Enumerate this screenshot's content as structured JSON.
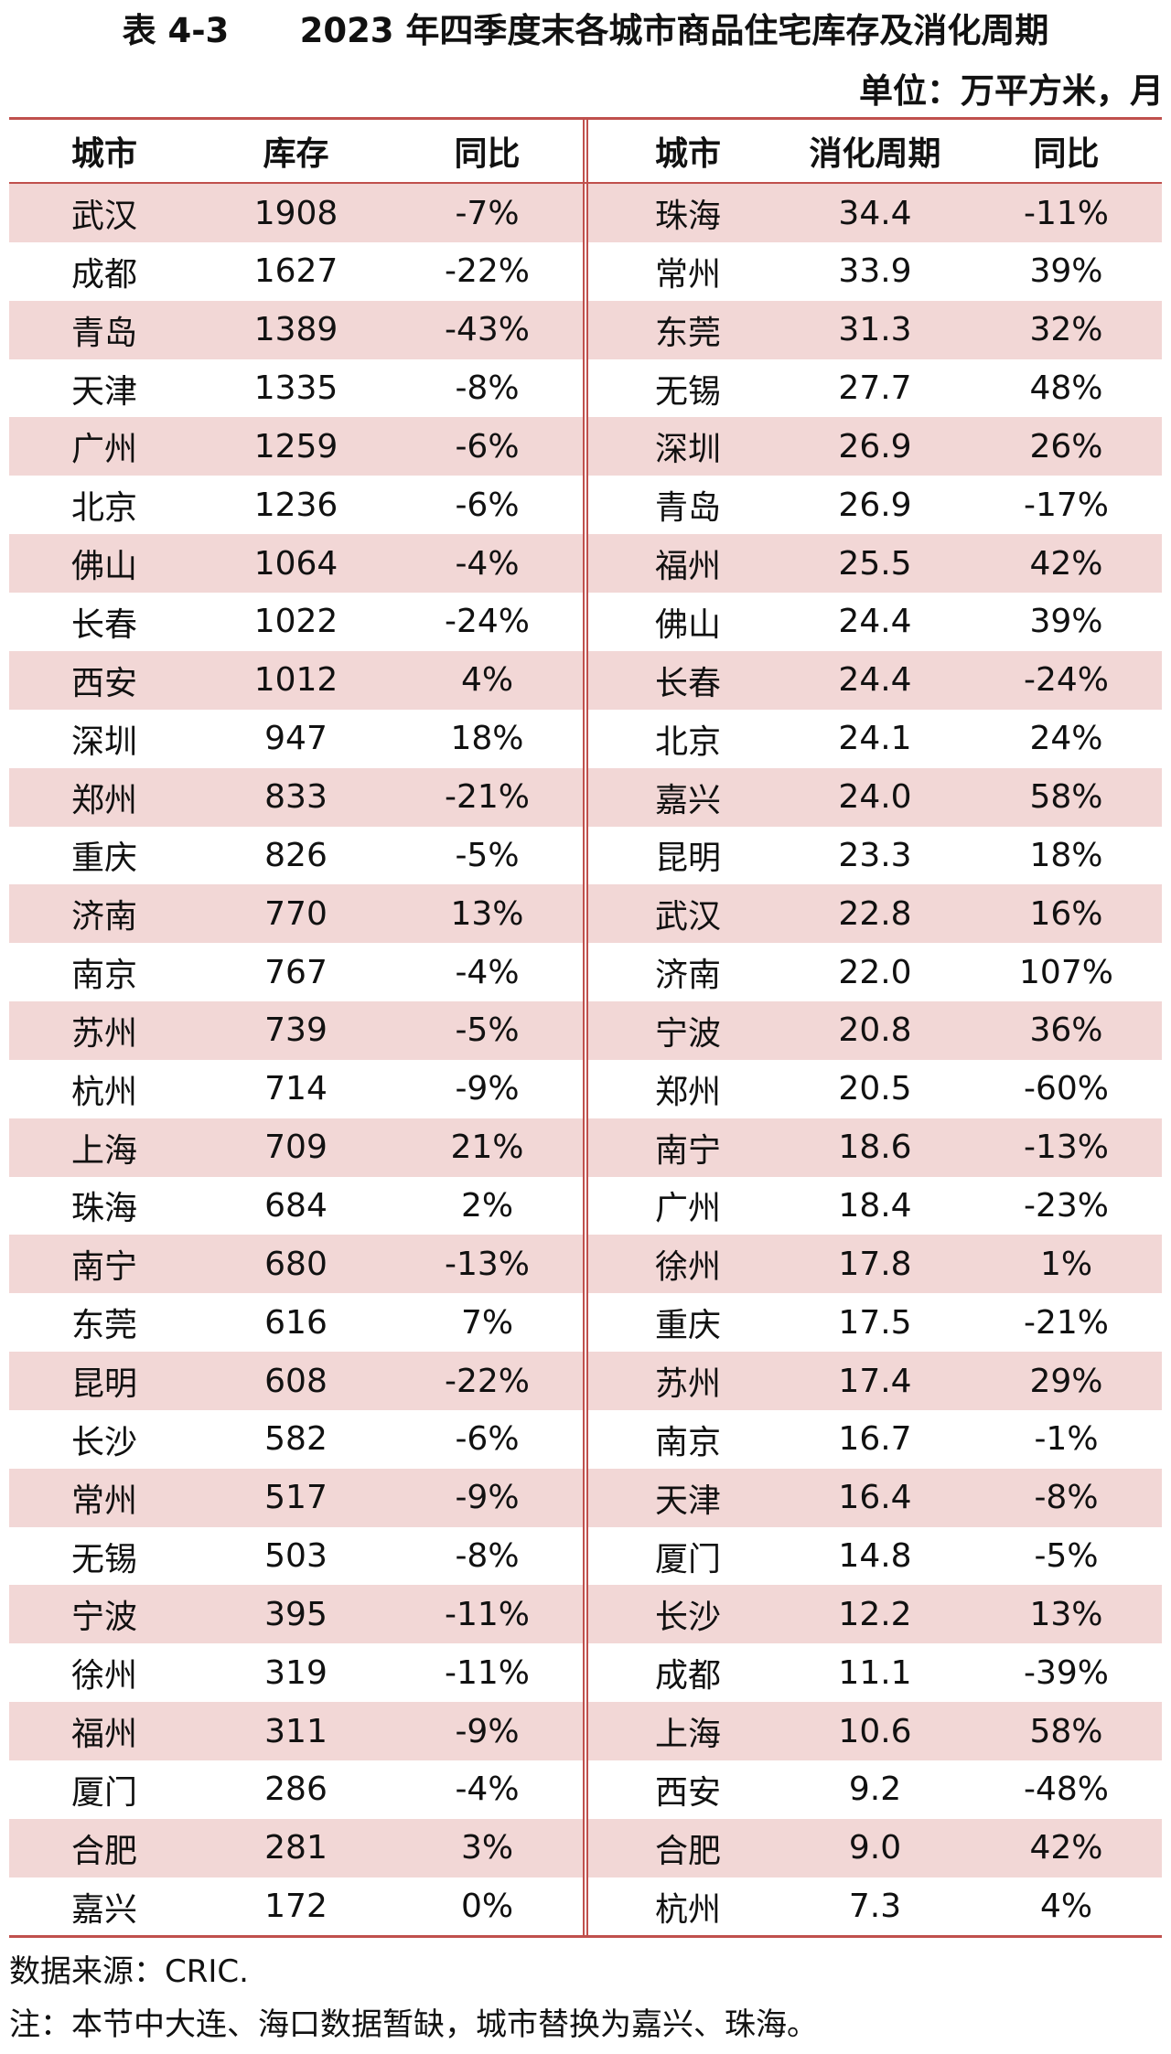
{
  "title": "表 4-3      2023 年四季度末各城市商品住宅库存及消化周期",
  "unit": "单位：万平方米，月",
  "left_headers": [
    "城市",
    "库存",
    "同比"
  ],
  "right_headers": [
    "城市",
    "消化周期",
    "同比"
  ],
  "left_rows": [
    [
      "武汉",
      "1908",
      "-7%"
    ],
    [
      "成都",
      "1627",
      "-22%"
    ],
    [
      "青岛",
      "1389",
      "-43%"
    ],
    [
      "天津",
      "1335",
      "-8%"
    ],
    [
      "广州",
      "1259",
      "-6%"
    ],
    [
      "北京",
      "1236",
      "-6%"
    ],
    [
      "佛山",
      "1064",
      "-4%"
    ],
    [
      "长春",
      "1022",
      "-24%"
    ],
    [
      "西安",
      "1012",
      "4%"
    ],
    [
      "深圳",
      "947",
      "18%"
    ],
    [
      "郑州",
      "833",
      "-21%"
    ],
    [
      "重庆",
      "826",
      "-5%"
    ],
    [
      "济南",
      "770",
      "13%"
    ],
    [
      "南京",
      "767",
      "-4%"
    ],
    [
      "苏州",
      "739",
      "-5%"
    ],
    [
      "杭州",
      "714",
      "-9%"
    ],
    [
      "上海",
      "709",
      "21%"
    ],
    [
      "珠海",
      "684",
      "2%"
    ],
    [
      "南宁",
      "680",
      "-13%"
    ],
    [
      "东莞",
      "616",
      "7%"
    ],
    [
      "昆明",
      "608",
      "-22%"
    ],
    [
      "长沙",
      "582",
      "-6%"
    ],
    [
      "常州",
      "517",
      "-9%"
    ],
    [
      "无锡",
      "503",
      "-8%"
    ],
    [
      "宁波",
      "395",
      "-11%"
    ],
    [
      "徐州",
      "319",
      "-11%"
    ],
    [
      "福州",
      "311",
      "-9%"
    ],
    [
      "厦门",
      "286",
      "-4%"
    ],
    [
      "合肥",
      "281",
      "3%"
    ],
    [
      "嘉兴",
      "172",
      "0%"
    ]
  ],
  "right_rows": [
    [
      "珠海",
      "34.4",
      "-11%"
    ],
    [
      "常州",
      "33.9",
      "39%"
    ],
    [
      "东莞",
      "31.3",
      "32%"
    ],
    [
      "无锡",
      "27.7",
      "48%"
    ],
    [
      "深圳",
      "26.9",
      "26%"
    ],
    [
      "青岛",
      "26.9",
      "-17%"
    ],
    [
      "福州",
      "25.5",
      "42%"
    ],
    [
      "佛山",
      "24.4",
      "39%"
    ],
    [
      "长春",
      "24.4",
      "-24%"
    ],
    [
      "北京",
      "24.1",
      "24%"
    ],
    [
      "嘉兴",
      "24.0",
      "58%"
    ],
    [
      "昆明",
      "23.3",
      "18%"
    ],
    [
      "武汉",
      "22.8",
      "16%"
    ],
    [
      "济南",
      "22.0",
      "107%"
    ],
    [
      "宁波",
      "20.8",
      "36%"
    ],
    [
      "郑州",
      "20.5",
      "-60%"
    ],
    [
      "南宁",
      "18.6",
      "-13%"
    ],
    [
      "广州",
      "18.4",
      "-23%"
    ],
    [
      "徐州",
      "17.8",
      "1%"
    ],
    [
      "重庆",
      "17.5",
      "-21%"
    ],
    [
      "苏州",
      "17.4",
      "29%"
    ],
    [
      "南京",
      "16.7",
      "-1%"
    ],
    [
      "天津",
      "16.4",
      "-8%"
    ],
    [
      "厦门",
      "14.8",
      "-5%"
    ],
    [
      "长沙",
      "12.2",
      "13%"
    ],
    [
      "成都",
      "11.1",
      "-39%"
    ],
    [
      "上海",
      "10.6",
      "58%"
    ],
    [
      "西安",
      "9.2",
      "-48%"
    ],
    [
      "合肥",
      "9.0",
      "42%"
    ],
    [
      "杭州",
      "7.3",
      "4%"
    ]
  ],
  "source": "数据来源：CRIC.",
  "note": "注：本节中大连、海口数据暂缺，城市替换为嘉兴、珠海。",
  "colors": {
    "rule": "#c0504d",
    "shade": "#f2d7d6"
  }
}
